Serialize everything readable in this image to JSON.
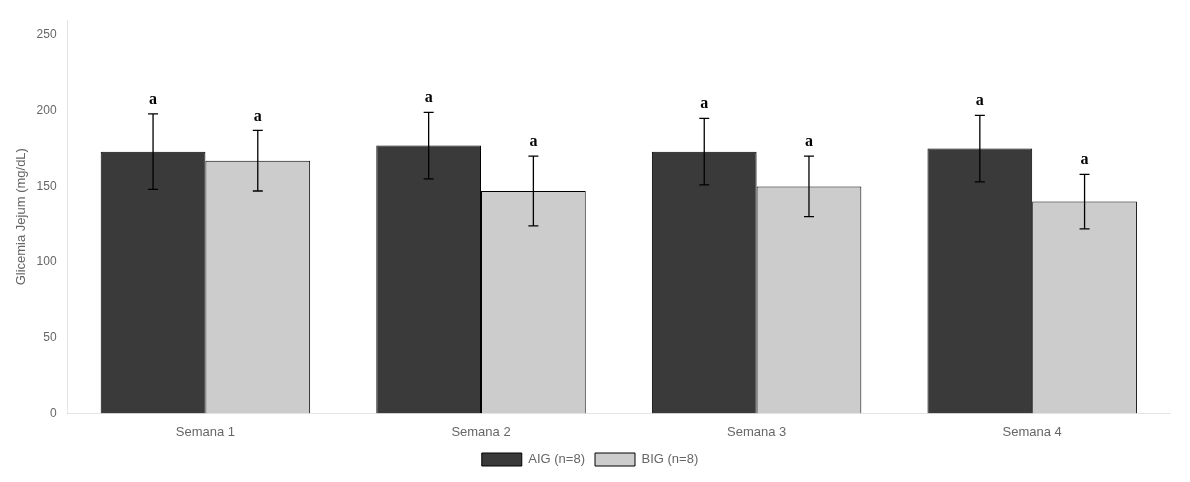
{
  "chart_data": {
    "type": "bar",
    "categories": [
      "Semana 1",
      "Semana 2",
      "Semana 3",
      "Semana 4"
    ],
    "series": [
      {
        "name": "AIG (n=8)",
        "color": "#3a3a3a",
        "values": [
          173,
          177,
          173,
          175
        ],
        "errors": [
          25,
          22,
          22,
          22
        ],
        "annotations": [
          "a",
          "a",
          "a",
          "a"
        ]
      },
      {
        "name": "BIG (n=8)",
        "color": "#cccccc",
        "values": [
          167,
          147,
          150,
          140
        ],
        "errors": [
          20,
          23,
          20,
          18
        ],
        "annotations": [
          "a",
          "a",
          "a",
          "a"
        ]
      }
    ],
    "ylabel": "Glicemia Jejum (mg/dL)",
    "ylim": [
      0,
      260
    ],
    "yticks": [
      0,
      50,
      100,
      150,
      200,
      250
    ],
    "grid": false,
    "legend": "bottom"
  }
}
